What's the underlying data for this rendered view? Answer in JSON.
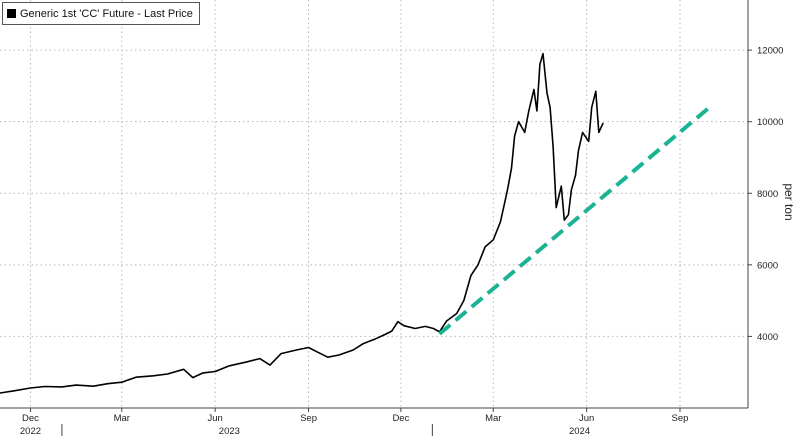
{
  "legend": {
    "label": "Generic 1st 'CC' Future - Last Price"
  },
  "chart_data": {
    "type": "line",
    "ylabel": "per ton",
    "ylim": [
      2000,
      13400
    ],
    "y_ticks": [
      4000,
      6000,
      8000,
      10000,
      12000
    ],
    "x_ticks": [
      {
        "date": "2022-12-01",
        "label": "Dec"
      },
      {
        "date": "2023-03-01",
        "label": "Mar"
      },
      {
        "date": "2023-06-01",
        "label": "Jun"
      },
      {
        "date": "2023-09-01",
        "label": "Sep"
      },
      {
        "date": "2023-12-01",
        "label": "Dec"
      },
      {
        "date": "2024-03-01",
        "label": "Mar"
      },
      {
        "date": "2024-06-01",
        "label": "Jun"
      },
      {
        "date": "2024-09-01",
        "label": "Sep"
      }
    ],
    "year_labels": [
      {
        "date": "2022-12-01",
        "label": "2022"
      },
      {
        "date": "2023-06-15",
        "label": "2023"
      },
      {
        "date": "2024-05-25",
        "label": "2024"
      }
    ],
    "year_dividers": [
      "2023-01-01",
      "2024-01-01"
    ],
    "series": [
      {
        "name": "Generic 1st 'CC' Future - Last Price",
        "color": "#000000",
        "points": [
          [
            "2022-11-01",
            2420
          ],
          [
            "2022-11-15",
            2480
          ],
          [
            "2022-12-01",
            2560
          ],
          [
            "2022-12-15",
            2600
          ],
          [
            "2023-01-01",
            2590
          ],
          [
            "2023-01-15",
            2640
          ],
          [
            "2023-02-01",
            2610
          ],
          [
            "2023-02-15",
            2680
          ],
          [
            "2023-03-01",
            2720
          ],
          [
            "2023-03-15",
            2860
          ],
          [
            "2023-04-01",
            2900
          ],
          [
            "2023-04-15",
            2950
          ],
          [
            "2023-05-01",
            3080
          ],
          [
            "2023-05-10",
            2850
          ],
          [
            "2023-05-20",
            2980
          ],
          [
            "2023-06-01",
            3020
          ],
          [
            "2023-06-15",
            3180
          ],
          [
            "2023-07-01",
            3280
          ],
          [
            "2023-07-15",
            3380
          ],
          [
            "2023-07-25",
            3200
          ],
          [
            "2023-08-05",
            3520
          ],
          [
            "2023-08-20",
            3620
          ],
          [
            "2023-09-01",
            3690
          ],
          [
            "2023-09-10",
            3560
          ],
          [
            "2023-09-20",
            3420
          ],
          [
            "2023-10-01",
            3480
          ],
          [
            "2023-10-15",
            3620
          ],
          [
            "2023-10-25",
            3800
          ],
          [
            "2023-11-05",
            3920
          ],
          [
            "2023-11-15",
            4050
          ],
          [
            "2023-11-22",
            4150
          ],
          [
            "2023-11-28",
            4410
          ],
          [
            "2023-12-04",
            4300
          ],
          [
            "2023-12-15",
            4220
          ],
          [
            "2023-12-25",
            4280
          ],
          [
            "2024-01-02",
            4220
          ],
          [
            "2024-01-08",
            4130
          ],
          [
            "2024-01-15",
            4430
          ],
          [
            "2024-01-25",
            4640
          ],
          [
            "2024-02-01",
            5000
          ],
          [
            "2024-02-08",
            5700
          ],
          [
            "2024-02-15",
            6000
          ],
          [
            "2024-02-22",
            6500
          ],
          [
            "2024-03-01",
            6700
          ],
          [
            "2024-03-08",
            7200
          ],
          [
            "2024-03-12",
            7700
          ],
          [
            "2024-03-15",
            8100
          ],
          [
            "2024-03-19",
            8700
          ],
          [
            "2024-03-22",
            9600
          ],
          [
            "2024-03-26",
            10000
          ],
          [
            "2024-04-01",
            9700
          ],
          [
            "2024-04-05",
            10300
          ],
          [
            "2024-04-10",
            10900
          ],
          [
            "2024-04-13",
            10300
          ],
          [
            "2024-04-16",
            11600
          ],
          [
            "2024-04-19",
            11900
          ],
          [
            "2024-04-23",
            10800
          ],
          [
            "2024-04-26",
            10400
          ],
          [
            "2024-04-29",
            9300
          ],
          [
            "2024-05-02",
            7600
          ],
          [
            "2024-05-07",
            8200
          ],
          [
            "2024-05-10",
            7250
          ],
          [
            "2024-05-14",
            7400
          ],
          [
            "2024-05-17",
            8100
          ],
          [
            "2024-05-21",
            8500
          ],
          [
            "2024-05-24",
            9200
          ],
          [
            "2024-05-28",
            9700
          ],
          [
            "2024-06-03",
            9450
          ],
          [
            "2024-06-06",
            10400
          ],
          [
            "2024-06-10",
            10850
          ],
          [
            "2024-06-13",
            9700
          ],
          [
            "2024-06-17",
            9950
          ]
        ]
      },
      {
        "name": "",
        "style": "dashed",
        "color": "#1ab394",
        "points": [
          [
            "2024-01-08",
            4070
          ],
          [
            "2024-09-30",
            10400
          ]
        ]
      }
    ]
  }
}
